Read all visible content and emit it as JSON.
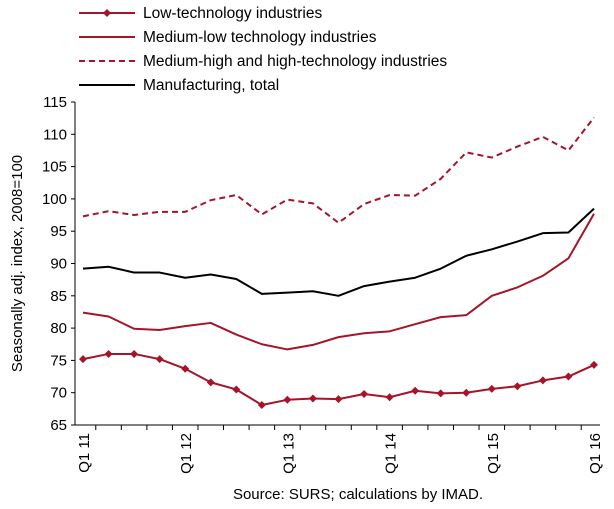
{
  "chart_data": {
    "type": "line",
    "ylabel": "Seasonally adj. index, 2008=100",
    "source": "Source: SURS; calculations by IMAD.",
    "ylim": [
      65,
      115
    ],
    "yticks": [
      65,
      70,
      75,
      80,
      85,
      90,
      95,
      100,
      105,
      110,
      115
    ],
    "grid": false,
    "legend_position": "top-left",
    "x_tick_labels": [
      "Q1 11",
      "Q1 12",
      "Q1 13",
      "Q1 14",
      "Q1 15",
      "Q1 16"
    ],
    "x": [
      "Q1 11",
      "Q2 11",
      "Q3 11",
      "Q4 11",
      "Q1 12",
      "Q2 12",
      "Q3 12",
      "Q4 12",
      "Q1 13",
      "Q2 13",
      "Q3 13",
      "Q4 13",
      "Q1 14",
      "Q2 14",
      "Q3 14",
      "Q4 14",
      "Q1 15",
      "Q2 15",
      "Q3 15",
      "Q4 15",
      "Q1 16"
    ],
    "series": [
      {
        "name": "Low-technology industries",
        "color": "#a5152a",
        "style": "solid-diamond",
        "values": [
          75.2,
          76.0,
          76.0,
          75.2,
          73.7,
          71.6,
          70.5,
          68.1,
          68.9,
          69.1,
          69.0,
          69.8,
          69.3,
          70.3,
          69.9,
          70.0,
          70.6,
          71.0,
          71.9,
          72.5,
          74.3
        ]
      },
      {
        "name": "Medium-low technology industries",
        "color": "#a5152a",
        "style": "solid",
        "values": [
          82.4,
          81.8,
          79.9,
          79.7,
          80.3,
          80.8,
          79.0,
          77.5,
          76.7,
          77.4,
          78.6,
          79.2,
          79.5,
          80.6,
          81.7,
          82.0,
          85.0,
          86.3,
          88.1,
          90.8,
          97.7
        ]
      },
      {
        "name": "Medium-high and high-technology industries",
        "color": "#a5152a",
        "style": "dashed",
        "values": [
          97.3,
          98.1,
          97.5,
          98.0,
          98.0,
          99.8,
          100.6,
          97.6,
          99.9,
          99.3,
          96.3,
          99.2,
          100.6,
          100.5,
          103.1,
          107.2,
          106.4,
          108.1,
          109.6,
          107.5,
          112.6
        ]
      },
      {
        "name": "Manufacturing, total",
        "color": "#000000",
        "style": "solid",
        "values": [
          89.2,
          89.5,
          88.6,
          88.6,
          87.8,
          88.3,
          87.6,
          85.3,
          85.5,
          85.7,
          85.0,
          86.5,
          87.2,
          87.8,
          89.2,
          91.2,
          92.2,
          93.4,
          94.7,
          94.8,
          98.5
        ]
      }
    ]
  }
}
